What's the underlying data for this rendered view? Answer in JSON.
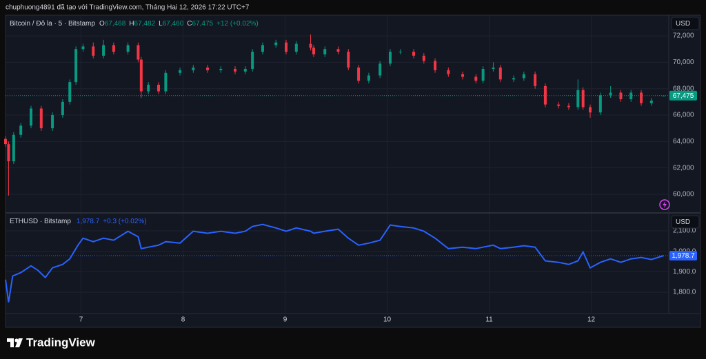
{
  "header": "chuphuong4891 đã tạo với TradingView.com, Tháng Hai 12, 2026 17:22 UTC+7",
  "brand": "TradingView",
  "chart_data": [
    {
      "type": "candlestick",
      "title": "Bitcoin / Đô la · 5 · Bitstamp",
      "ohlc_labels": [
        {
          "key": "O",
          "value": "67,468"
        },
        {
          "key": "H",
          "value": "67,482"
        },
        {
          "key": "L",
          "value": "67,460"
        },
        {
          "key": "C",
          "value": "67,475"
        }
      ],
      "change_label": "+12 (+0.02%)",
      "currency": "USD",
      "last_price_label": "67,475",
      "up_color": "#089981",
      "down_color": "#f23645",
      "x": [
        6.26,
        6.29,
        6.34,
        6.41,
        6.51,
        6.61,
        6.72,
        6.82,
        6.89,
        6.95,
        7.02,
        7.12,
        7.22,
        7.32,
        7.46,
        7.56,
        7.59,
        7.66,
        7.76,
        7.83,
        7.97,
        8.1,
        8.24,
        8.37,
        8.51,
        8.61,
        8.68,
        8.78,
        8.91,
        9.01,
        9.11,
        9.25,
        9.28,
        9.39,
        9.52,
        9.62,
        9.72,
        9.82,
        9.93,
        10.03,
        10.13,
        10.26,
        10.36,
        10.47,
        10.6,
        10.74,
        10.87,
        10.94,
        11.04,
        11.11,
        11.24,
        11.34,
        11.45,
        11.55,
        11.68,
        11.78,
        11.87,
        11.92,
        11.99,
        12.09,
        12.19,
        12.29,
        12.39,
        12.49,
        12.59,
        12.71
      ],
      "open": [
        64200,
        63800,
        62500,
        64500,
        65200,
        66500,
        65000,
        66000,
        67000,
        68500,
        71000,
        71200,
        70500,
        71300,
        70800,
        71300,
        70200,
        67800,
        68300,
        67800,
        69200,
        69400,
        69600,
        69400,
        69500,
        69300,
        69500,
        70800,
        71300,
        71500,
        70800,
        71400,
        71100,
        70600,
        71000,
        70800,
        69600,
        68600,
        69000,
        69900,
        70800,
        70800,
        70500,
        70100,
        69400,
        69100,
        68900,
        68600,
        69500,
        69600,
        68700,
        68800,
        69100,
        68200,
        66800,
        66700,
        66600,
        67900,
        66600,
        66200,
        67500,
        67700,
        67200,
        67700,
        66900,
        67468
      ],
      "high": [
        64400,
        64000,
        64700,
        65400,
        66700,
        66700,
        66200,
        67200,
        68700,
        71200,
        71400,
        71500,
        71700,
        71500,
        71500,
        71500,
        70400,
        68500,
        68500,
        69400,
        69600,
        69800,
        69800,
        69700,
        69700,
        69700,
        71000,
        71500,
        71700,
        71700,
        71600,
        72100,
        71300,
        71200,
        71200,
        71000,
        69800,
        69200,
        70100,
        71000,
        71000,
        71000,
        70700,
        70300,
        69600,
        69300,
        69100,
        69700,
        70000,
        69800,
        69000,
        69300,
        69300,
        68400,
        67000,
        66900,
        68700,
        68100,
        66800,
        67700,
        68200,
        67900,
        67900,
        67900,
        67300,
        67482
      ],
      "low": [
        63600,
        59900,
        62300,
        64300,
        65000,
        64800,
        64800,
        65800,
        66800,
        68300,
        70800,
        70300,
        70300,
        70600,
        70600,
        70000,
        67300,
        67600,
        67600,
        67600,
        69000,
        69200,
        69200,
        69200,
        69100,
        69100,
        69300,
        70600,
        71100,
        70600,
        70600,
        70900,
        70400,
        70400,
        70600,
        69400,
        68400,
        68400,
        68800,
        69700,
        70600,
        70300,
        69900,
        69200,
        68900,
        68700,
        68400,
        68400,
        69300,
        68500,
        68500,
        68600,
        68000,
        66600,
        66500,
        66400,
        66400,
        66400,
        65800,
        66000,
        67300,
        67000,
        67000,
        66700,
        66700,
        67460
      ],
      "close": [
        63800,
        62500,
        64500,
        65200,
        66500,
        65000,
        66000,
        67000,
        68500,
        71000,
        71200,
        70500,
        71300,
        70800,
        71300,
        70200,
        67800,
        68300,
        67800,
        69200,
        69400,
        69600,
        69400,
        69500,
        69300,
        69500,
        70800,
        71300,
        71500,
        70800,
        71400,
        71100,
        70600,
        71000,
        70800,
        69600,
        68600,
        69000,
        69900,
        70800,
        70800,
        70500,
        70100,
        69400,
        69100,
        68900,
        68600,
        69500,
        69600,
        68700,
        68800,
        69100,
        68200,
        66800,
        66700,
        66600,
        67900,
        66600,
        66200,
        67500,
        67700,
        67200,
        67700,
        66900,
        67100,
        67475
      ],
      "xlim": [
        6.26,
        12.76
      ],
      "ylim": [
        58640,
        73570
      ],
      "yticks": [
        {
          "value": 60000,
          "label": "60,000"
        },
        {
          "value": 62000,
          "label": "62,000"
        },
        {
          "value": 64000,
          "label": "64,000"
        },
        {
          "value": 66000,
          "label": "66,000"
        },
        {
          "value": 68000,
          "label": "68,000"
        },
        {
          "value": 70000,
          "label": "70,000"
        },
        {
          "value": 72000,
          "label": "72,000"
        }
      ],
      "grid": true
    },
    {
      "type": "line",
      "title": "ETHUSD · Bitstamp",
      "last_label": "1,978.7",
      "change_label": "+0.3 (+0.02%)",
      "currency": "USD",
      "color": "#2962ff",
      "x": [
        6.26,
        6.29,
        6.33,
        6.41,
        6.51,
        6.58,
        6.65,
        6.72,
        6.82,
        6.89,
        6.97,
        7.02,
        7.12,
        7.22,
        7.32,
        7.46,
        7.56,
        7.59,
        7.66,
        7.76,
        7.83,
        7.97,
        8.1,
        8.24,
        8.37,
        8.51,
        8.61,
        8.68,
        8.78,
        8.91,
        9.01,
        9.11,
        9.25,
        9.28,
        9.39,
        9.52,
        9.62,
        9.72,
        9.82,
        9.93,
        10.03,
        10.13,
        10.26,
        10.36,
        10.47,
        10.6,
        10.74,
        10.87,
        10.94,
        11.04,
        11.11,
        11.24,
        11.34,
        11.45,
        11.55,
        11.68,
        11.78,
        11.87,
        11.92,
        11.99,
        12.09,
        12.19,
        12.29,
        12.39,
        12.49,
        12.59,
        12.71
      ],
      "values": [
        1862,
        1751,
        1879,
        1896,
        1929,
        1906,
        1872,
        1919,
        1936,
        1963,
        2030,
        2064,
        2047,
        2064,
        2054,
        2098,
        2071,
        2013,
        2020,
        2030,
        2047,
        2040,
        2098,
        2088,
        2098,
        2088,
        2098,
        2121,
        2131,
        2114,
        2098,
        2114,
        2098,
        2088,
        2098,
        2108,
        2064,
        2030,
        2040,
        2054,
        2128,
        2121,
        2114,
        2098,
        2064,
        2013,
        2020,
        2013,
        2020,
        2030,
        2013,
        2020,
        2027,
        2020,
        1953,
        1946,
        1936,
        1953,
        1997,
        1919,
        1946,
        1963,
        1946,
        1963,
        1970,
        1960,
        1978.7
      ],
      "xlim": [
        6.26,
        12.76
      ],
      "ylim": [
        1696,
        2184
      ],
      "yticks": [
        {
          "value": 1800,
          "label": "1,800.0"
        },
        {
          "value": 1900,
          "label": "1,900.0"
        },
        {
          "value": 2000,
          "label": "2,000.0"
        },
        {
          "value": 2100,
          "label": "2,100.0"
        }
      ],
      "xticks": [
        7,
        8,
        9,
        10,
        11,
        12
      ],
      "grid": true
    }
  ]
}
